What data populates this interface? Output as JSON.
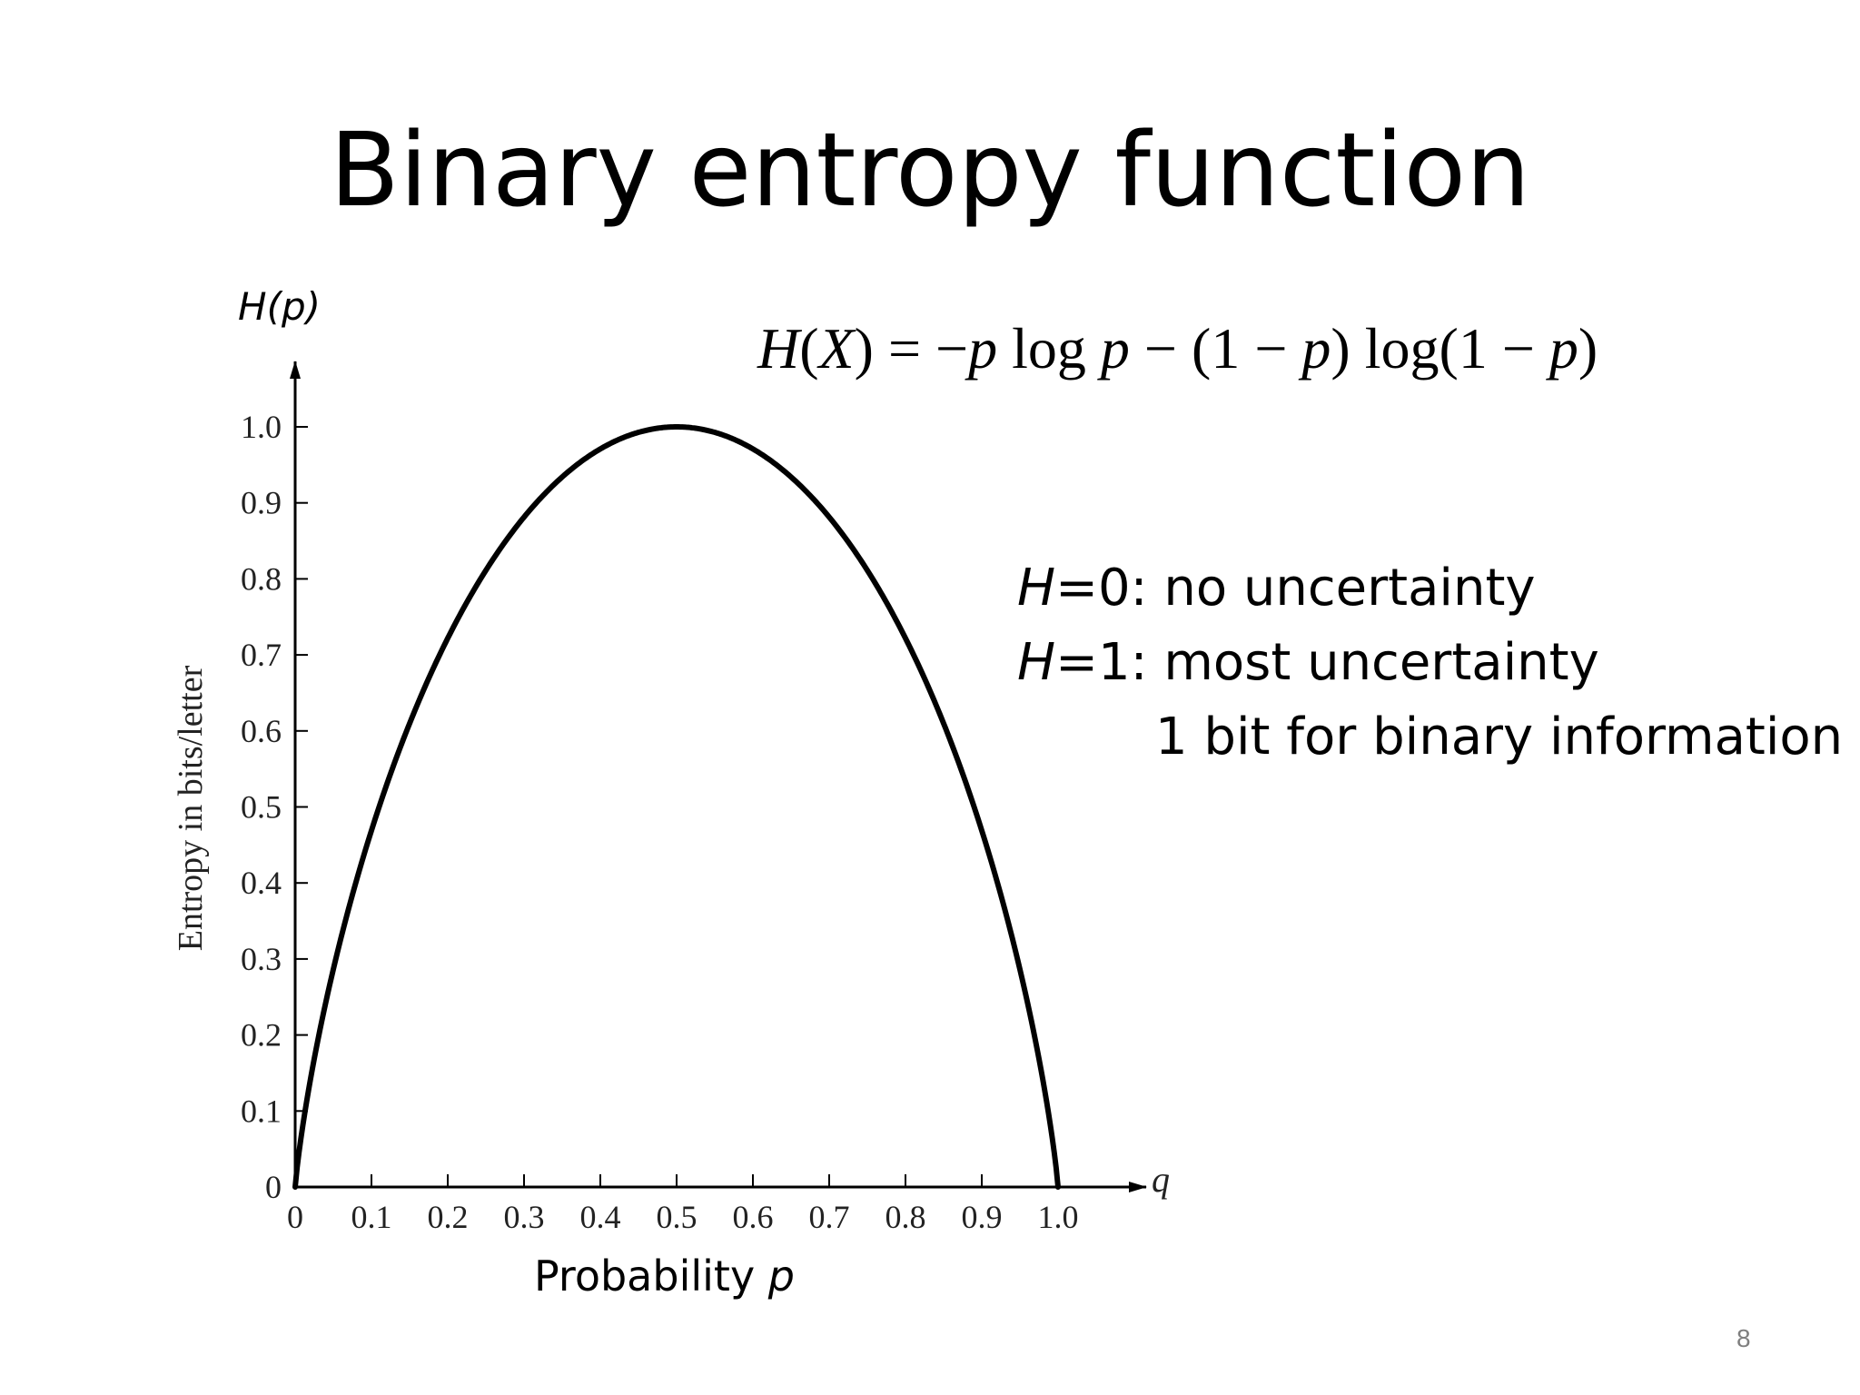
{
  "slide": {
    "title": "Binary entropy function",
    "y_axis_symbol": "H(p)",
    "formula": {
      "lhs_func": "H",
      "lhs_open": "(",
      "lhs_var": "X",
      "lhs_close": ")",
      "eq": " = −",
      "t1_var": "p",
      "t1_log": " log ",
      "t1_arg": "p",
      "minus": " − (1 − ",
      "t2_var": "p",
      "t2_close": ")",
      "t2_log": " log(1 − ",
      "t2_arg": "p",
      "end": ")"
    },
    "notes": [
      {
        "sym": "H",
        "text": "=0: no uncertainty"
      },
      {
        "sym": "H",
        "text": "=1: most uncertainty"
      },
      {
        "sym": "",
        "text": "1 bit for binary information"
      }
    ],
    "x_label_prefix": "Probability ",
    "x_label_var": "p",
    "page_number": "8"
  },
  "chart_data": {
    "type": "line",
    "xlabel": "Probability p",
    "ylabel": "Entropy in bits/letter",
    "x_axis_end_label": "q",
    "xlim": [
      0,
      1.0
    ],
    "ylim": [
      0,
      1.0
    ],
    "x_ticks": [
      "0",
      "0.1",
      "0.2",
      "0.3",
      "0.4",
      "0.5",
      "0.6",
      "0.7",
      "0.8",
      "0.9",
      "1.0"
    ],
    "y_ticks": [
      "0",
      "0.1",
      "0.2",
      "0.3",
      "0.4",
      "0.5",
      "0.6",
      "0.7",
      "0.8",
      "0.9",
      "1.0"
    ],
    "grid": false,
    "series": [
      {
        "x": [
          0,
          0.01,
          0.02,
          0.05,
          0.1,
          0.15,
          0.2,
          0.25,
          0.3,
          0.35,
          0.4,
          0.45,
          0.5,
          0.55,
          0.6,
          0.65,
          0.7,
          0.75,
          0.8,
          0.85,
          0.9,
          0.95,
          0.98,
          0.99,
          1.0
        ],
        "y": [
          0,
          0.081,
          0.141,
          0.286,
          0.469,
          0.61,
          0.722,
          0.811,
          0.881,
          0.934,
          0.971,
          0.993,
          1.0,
          0.993,
          0.971,
          0.934,
          0.881,
          0.811,
          0.722,
          0.61,
          0.469,
          0.286,
          0.141,
          0.081,
          0
        ]
      }
    ]
  }
}
